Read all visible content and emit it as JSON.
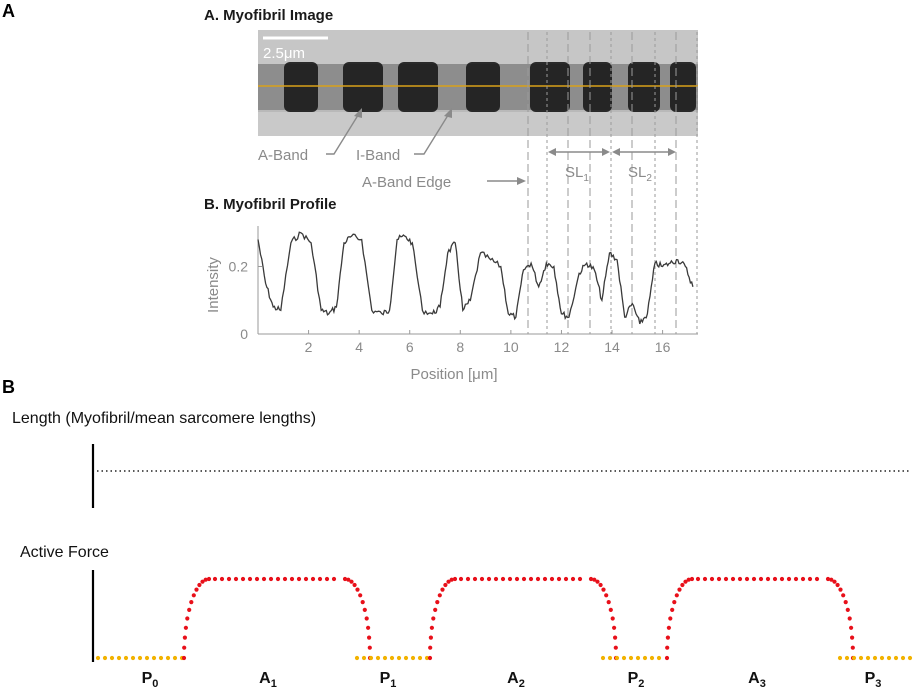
{
  "panel_a": {
    "letter": "A",
    "image_title": "A. Myofibril Image",
    "scale_bar": "2.5μm",
    "labels": {
      "a_band": "A-Band",
      "i_band": "I-Band",
      "a_band_edge": "A-Band Edge",
      "sl1": "SL",
      "sl1_sub": "1",
      "sl2": "SL",
      "sl2_sub": "2"
    },
    "profile_title": "B. Myofibril Profile"
  },
  "chart_data": {
    "type": "line",
    "xlabel": "Position [μm]",
    "ylabel": "Intensity",
    "xlim": [
      0,
      17.4
    ],
    "ylim": [
      0,
      0.32
    ],
    "x_ticks": [
      "2",
      "4",
      "6",
      "8",
      "10",
      "12",
      "14",
      "16"
    ],
    "y_ticks": [
      "0",
      "0.2"
    ],
    "series": [
      {
        "color": "#333333",
        "x": [
          0,
          0.3,
          0.6,
          0.9,
          1.3,
          1.7,
          2.1,
          2.5,
          2.8,
          3.1,
          3.4,
          3.7,
          4.1,
          4.5,
          4.9,
          5.2,
          5.5,
          5.8,
          6.1,
          6.5,
          6.9,
          7.2,
          7.5,
          7.8,
          8.1,
          8.4,
          8.8,
          9.2,
          9.6,
          9.9,
          10.2,
          10.5,
          10.8,
          11.1,
          11.4,
          11.7,
          12.0,
          12.3,
          12.7,
          13.0,
          13.3,
          13.6,
          13.9,
          14.2,
          14.5,
          14.8,
          15.1,
          15.4,
          15.7,
          16.0,
          16.3,
          16.6,
          16.9,
          17.2
        ],
        "values": [
          0.28,
          0.15,
          0.08,
          0.07,
          0.27,
          0.3,
          0.27,
          0.07,
          0.06,
          0.08,
          0.27,
          0.29,
          0.28,
          0.07,
          0.06,
          0.07,
          0.28,
          0.29,
          0.27,
          0.07,
          0.06,
          0.08,
          0.24,
          0.27,
          0.07,
          0.1,
          0.24,
          0.22,
          0.2,
          0.06,
          0.05,
          0.19,
          0.21,
          0.14,
          0.21,
          0.2,
          0.06,
          0.05,
          0.18,
          0.21,
          0.19,
          0.1,
          0.24,
          0.22,
          0.05,
          0.09,
          0.03,
          0.06,
          0.21,
          0.2,
          0.21,
          0.22,
          0.2,
          0.14
        ]
      }
    ]
  },
  "panel_b": {
    "letter": "B",
    "length_label": "Length (Myofibril/mean sarcomere lengths)",
    "force_label": "Active Force",
    "phases": [
      {
        "main": "P",
        "sub": "0"
      },
      {
        "main": "A",
        "sub": "1"
      },
      {
        "main": "P",
        "sub": "1"
      },
      {
        "main": "A",
        "sub": "2"
      },
      {
        "main": "P",
        "sub": "2"
      },
      {
        "main": "A",
        "sub": "3"
      },
      {
        "main": "P",
        "sub": "3"
      }
    ],
    "colors": {
      "passive": "#f2b200",
      "active": "#e8101a"
    }
  }
}
